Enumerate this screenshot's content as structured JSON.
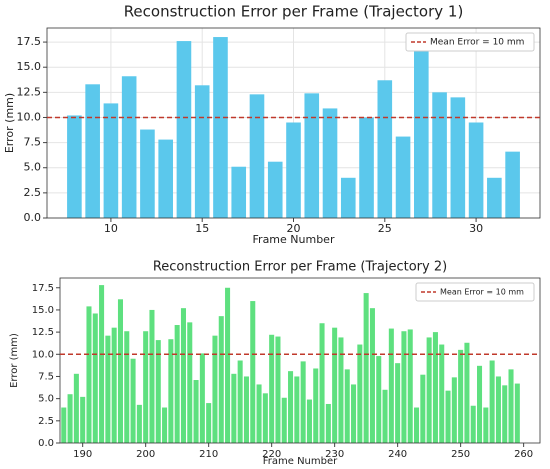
{
  "chart_data": [
    {
      "type": "bar",
      "title": "Reconstruction Error per Frame (Trajectory 1)",
      "xlabel": "Frame Number",
      "ylabel": "Error (mm)",
      "x": [
        8,
        9,
        10,
        11,
        12,
        13,
        14,
        15,
        16,
        17,
        18,
        19,
        20,
        21,
        22,
        23,
        24,
        25,
        26,
        27,
        28,
        29,
        30,
        31,
        32
      ],
      "values": [
        10.2,
        13.3,
        11.4,
        14.1,
        8.8,
        7.8,
        17.6,
        13.2,
        18.0,
        5.1,
        12.3,
        5.6,
        9.5,
        12.4,
        10.9,
        4.0,
        10.0,
        13.7,
        8.1,
        16.8,
        12.5,
        12.0,
        9.5,
        4.0,
        6.6
      ],
      "color": "#5bc8ec",
      "xlim": [
        6.5,
        33.5
      ],
      "xticks": [
        10,
        15,
        20,
        25,
        30
      ],
      "ylim": [
        0,
        18.9
      ],
      "yticks": [
        {
          "value": 0,
          "label": "0.0"
        },
        2.5,
        {
          "value": 5,
          "label": "5.0"
        },
        7.5,
        {
          "value": 10,
          "label": "10.0"
        },
        12.5,
        {
          "value": 15,
          "label": "15.0"
        },
        17.5
      ],
      "hline": {
        "value": 10,
        "label": "Mean Error = 10 mm",
        "color": "#c0392b"
      },
      "legend": "upper right",
      "grid": true
    },
    {
      "type": "bar",
      "title": "Reconstruction Error per Frame (Trajectory 2)",
      "xlabel": "Frame Number",
      "ylabel": "Error (mm)",
      "x": [
        187,
        188,
        189,
        190,
        191,
        192,
        193,
        194,
        195,
        196,
        197,
        198,
        199,
        200,
        201,
        202,
        203,
        204,
        205,
        206,
        207,
        208,
        209,
        210,
        211,
        212,
        213,
        214,
        215,
        216,
        217,
        218,
        219,
        220,
        221,
        222,
        223,
        224,
        225,
        226,
        227,
        228,
        229,
        230,
        231,
        232,
        233,
        234,
        235,
        236,
        237,
        238,
        239,
        240,
        241,
        242,
        243,
        244,
        245,
        246,
        247,
        248,
        249,
        250,
        251,
        252,
        253,
        254,
        255,
        256,
        257,
        258,
        259
      ],
      "values": [
        4.0,
        5.5,
        7.8,
        5.2,
        15.4,
        14.6,
        17.8,
        12.1,
        13.0,
        16.2,
        12.6,
        9.5,
        4.3,
        12.6,
        15.0,
        11.6,
        4.0,
        11.7,
        13.3,
        15.2,
        13.6,
        7.1,
        10.1,
        4.5,
        12.1,
        14.3,
        17.5,
        7.8,
        9.3,
        7.5,
        16.0,
        6.6,
        5.6,
        12.2,
        12.0,
        5.1,
        8.1,
        7.5,
        9.2,
        4.9,
        8.4,
        13.5,
        4.4,
        13.0,
        11.9,
        8.3,
        6.6,
        11.1,
        16.9,
        15.2,
        9.8,
        6.0,
        12.9,
        9.0,
        12.6,
        12.8,
        4.0,
        7.7,
        11.9,
        12.5,
        11.1,
        5.9,
        7.4,
        10.5,
        11.3,
        4.2,
        8.7,
        4.0,
        9.3,
        7.5,
        6.5,
        8.3,
        6.7
      ],
      "color": "#5ee07f",
      "xlim": [
        186.4,
        262.6
      ],
      "xticks": [
        190,
        200,
        210,
        220,
        230,
        240,
        250,
        260
      ],
      "ylim": [
        0,
        18.6
      ],
      "yticks": [
        {
          "value": 0,
          "label": "0.0"
        },
        2.5,
        {
          "value": 5,
          "label": "5.0"
        },
        7.5,
        {
          "value": 10,
          "label": "10.0"
        },
        12.5,
        {
          "value": 15,
          "label": "15.0"
        },
        17.5
      ],
      "hline": {
        "value": 10,
        "label": "Mean Error = 10 mm",
        "color": "#c0392b"
      },
      "legend": "upper right",
      "grid": false
    }
  ]
}
